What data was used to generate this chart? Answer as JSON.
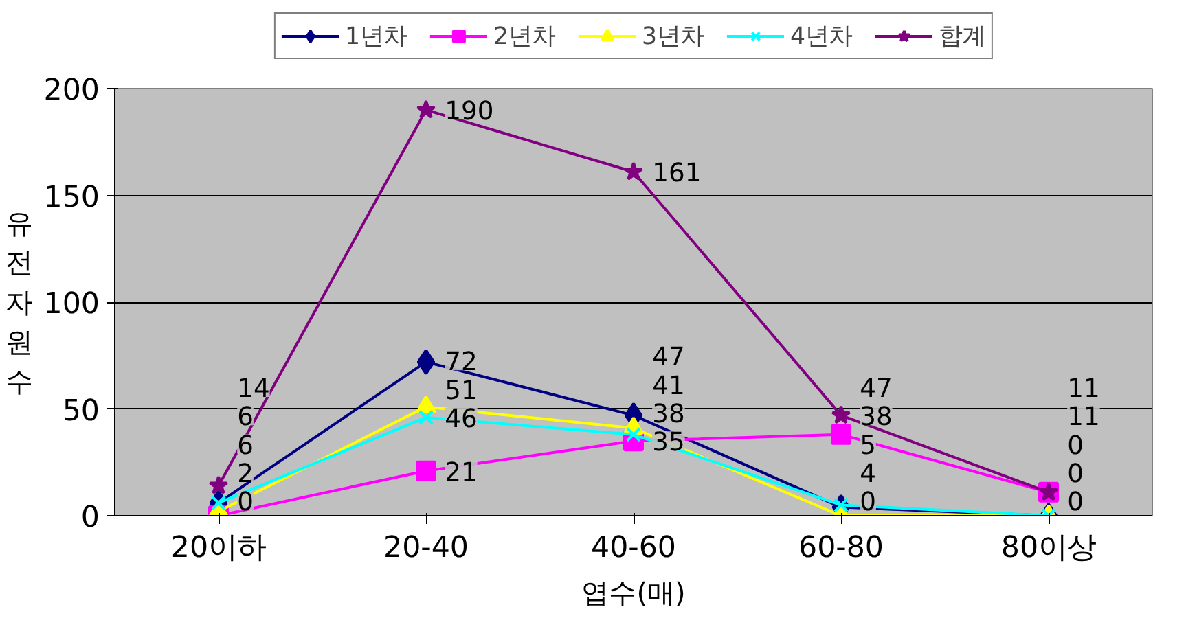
{
  "chart_data": {
    "type": "line",
    "xlabel": "엽수(매)",
    "ylabel": "유전자원수",
    "categories": [
      "20이하",
      "20-40",
      "40-60",
      "60-80",
      "80이상"
    ],
    "series": [
      {
        "name": "1년차",
        "color": "#000080",
        "marker": "diamond",
        "values": [
          6,
          72,
          47,
          4,
          0
        ]
      },
      {
        "name": "2년차",
        "color": "#ff00ff",
        "marker": "square",
        "values": [
          0,
          21,
          35,
          38,
          11
        ]
      },
      {
        "name": "3년차",
        "color": "#ffff00",
        "marker": "triangle",
        "values": [
          2,
          51,
          41,
          0,
          0
        ]
      },
      {
        "name": "4년차",
        "color": "#00ffff",
        "marker": "cross",
        "values": [
          6,
          46,
          38,
          5,
          0
        ]
      },
      {
        "name": "합계",
        "color": "#800080",
        "marker": "star",
        "values": [
          14,
          190,
          161,
          47,
          11
        ]
      }
    ],
    "ylim": [
      0,
      200
    ],
    "yticks": [
      0,
      50,
      100,
      150,
      200
    ],
    "grid": "y",
    "legend": "top",
    "data_labels": true
  }
}
